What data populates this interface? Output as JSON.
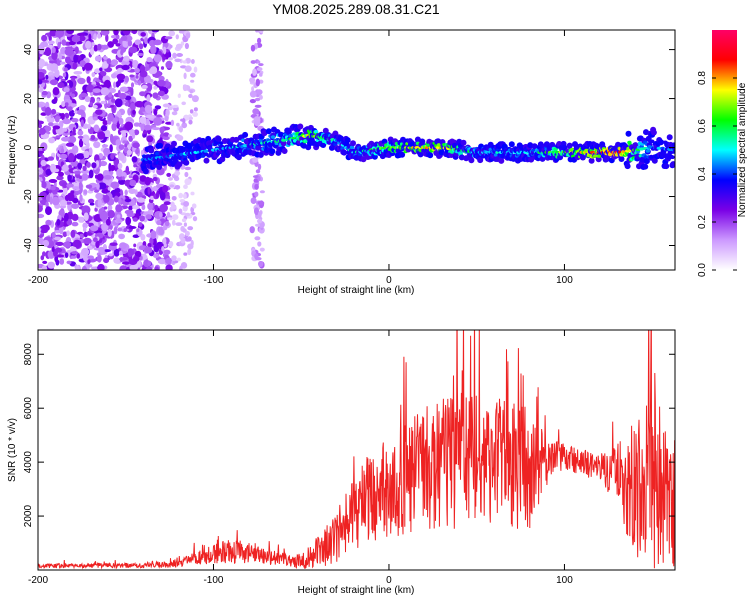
{
  "title": "YM08.2025.289.08.31.C21",
  "chart_data": [
    {
      "type": "heatmap",
      "title": "YM08.2025.289.08.31.C21",
      "xlabel": "Height of straight line (km)",
      "ylabel": "Frequency (Hz)",
      "xlim": [
        -200,
        163
      ],
      "ylim": [
        -50,
        48
      ],
      "x_ticks": [
        -200,
        -100,
        0,
        100
      ],
      "x_tick_labels": [
        "-200",
        "-100",
        "0",
        "100"
      ],
      "y_ticks": [
        -40,
        -20,
        0,
        20,
        40
      ],
      "y_tick_labels": [
        "-40",
        "-20",
        "0",
        "20",
        "40"
      ],
      "colorbar": {
        "label": "Normalized spectral amplitude",
        "range": [
          0,
          1
        ],
        "ticks": [
          0,
          0.2,
          0.4,
          0.6,
          0.8
        ],
        "tick_labels": [
          "0.0",
          "0.2",
          "0.4",
          "0.6",
          "0.8"
        ],
        "colors": [
          "#ffffff",
          "#cc99ff",
          "#7a00e6",
          "#0000ff",
          "#00ffff",
          "#00ff00",
          "#ffff00",
          "#ff0000",
          "#ff0066"
        ]
      },
      "noise_region_km": [
        -200,
        -125
      ],
      "sparse_column_km": [
        -72,
        -78
      ],
      "ridge": [
        {
          "x": -140,
          "f": -5,
          "a": 0.45
        },
        {
          "x": -120,
          "f": -3,
          "a": 0.45
        },
        {
          "x": -100,
          "f": -1,
          "a": 0.5
        },
        {
          "x": -80,
          "f": 1,
          "a": 0.5
        },
        {
          "x": -60,
          "f": 3,
          "a": 0.55
        },
        {
          "x": -45,
          "f": 5,
          "a": 0.75
        },
        {
          "x": -30,
          "f": 3,
          "a": 0.5
        },
        {
          "x": -20,
          "f": -2,
          "a": 0.5
        },
        {
          "x": 0,
          "f": 0,
          "a": 0.7
        },
        {
          "x": 30,
          "f": 0,
          "a": 0.8
        },
        {
          "x": 50,
          "f": -2,
          "a": 0.5
        },
        {
          "x": 80,
          "f": -2,
          "a": 0.5
        },
        {
          "x": 100,
          "f": -2,
          "a": 0.7
        },
        {
          "x": 130,
          "f": -2,
          "a": 0.9
        },
        {
          "x": 150,
          "f": 0,
          "a": 0.45
        },
        {
          "x": 163,
          "f": -1,
          "a": 0.4
        }
      ]
    },
    {
      "type": "line",
      "xlabel": "Height of straight line (km)",
      "ylabel": "SNR (10 * v/v)",
      "xlim": [
        -200,
        163
      ],
      "ylim": [
        0,
        8900
      ],
      "x_ticks": [
        -200,
        -100,
        0,
        100
      ],
      "x_tick_labels": [
        "-200",
        "-100",
        "0",
        "100"
      ],
      "y_ticks": [
        2000,
        4000,
        6000,
        8000
      ],
      "y_tick_labels": [
        "2000",
        "4000",
        "6000",
        "8000"
      ],
      "series_color": "#ee2222",
      "envelope": {
        "x": [
          -200,
          -150,
          -125,
          -110,
          -100,
          -90,
          -80,
          -70,
          -60,
          -50,
          -40,
          -30,
          -20,
          -10,
          0,
          10,
          20,
          30,
          40,
          50,
          60,
          70,
          80,
          90,
          95,
          100,
          110,
          120,
          130,
          140,
          150,
          160,
          163
        ],
        "center": [
          150,
          170,
          200,
          400,
          600,
          700,
          650,
          500,
          400,
          300,
          700,
          1200,
          2000,
          2800,
          3000,
          3400,
          3700,
          4000,
          4200,
          4000,
          4100,
          3900,
          3800,
          3900,
          4200,
          4200,
          4000,
          3800,
          3600,
          3000,
          2800,
          2600,
          2500
        ],
        "spread": [
          80,
          90,
          120,
          250,
          350,
          450,
          400,
          300,
          250,
          250,
          600,
          1000,
          1400,
          1700,
          1900,
          2100,
          2300,
          2500,
          2700,
          2500,
          2300,
          2400,
          2300,
          1000,
          600,
          500,
          500,
          500,
          1200,
          2700,
          2800,
          2600,
          2500
        ]
      }
    }
  ]
}
